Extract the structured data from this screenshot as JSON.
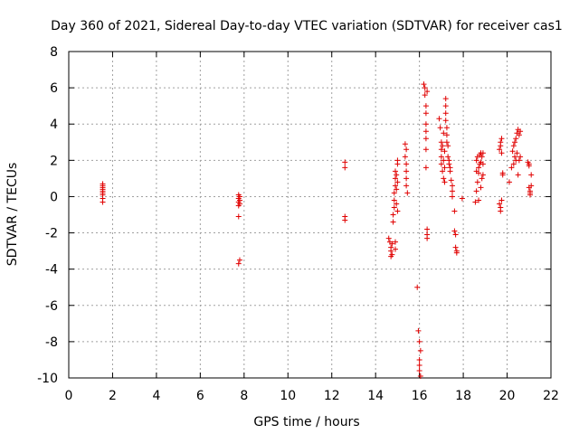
{
  "chart_data": {
    "type": "scatter",
    "title": "Day 360 of 2021, Sidereal Day-to-day VTEC variation (SDTVAR) for receiver cas1",
    "xlabel": "GPS time / hours",
    "ylabel": "SDTVAR / TECUs",
    "xlim": [
      0,
      22
    ],
    "ylim": [
      -10,
      8
    ],
    "xticks": [
      0,
      2,
      4,
      6,
      8,
      10,
      12,
      14,
      16,
      18,
      20,
      22
    ],
    "yticks": [
      -10,
      -8,
      -6,
      -4,
      -2,
      0,
      2,
      4,
      6,
      8
    ],
    "xtick_labels": [
      "0",
      "2",
      "4",
      "6",
      "8",
      "10",
      "12",
      "14",
      "16",
      "18",
      "20",
      "22"
    ],
    "ytick_labels": [
      "-10",
      "-8",
      "-6",
      "-4",
      "-2",
      "0",
      "2",
      "4",
      "6",
      "8"
    ],
    "grid": true,
    "marker": "+",
    "marker_color": "#e00000",
    "series": [
      {
        "name": "SDTVAR",
        "x": [
          1.55,
          1.55,
          1.55,
          1.55,
          1.55,
          1.55,
          1.55,
          1.55,
          1.55,
          7.75,
          7.75,
          7.75,
          7.75,
          7.8,
          7.8,
          7.8,
          7.75,
          7.8,
          7.75,
          12.6,
          12.6,
          12.6,
          12.6,
          14.6,
          14.65,
          14.7,
          14.7,
          14.7,
          14.75,
          14.75,
          14.8,
          14.8,
          14.85,
          14.85,
          14.85,
          14.9,
          14.9,
          14.9,
          14.95,
          14.95,
          14.95,
          15.0,
          15.0,
          15.0,
          15.0,
          14.9,
          14.9,
          15.35,
          15.35,
          15.4,
          15.4,
          15.4,
          15.4,
          15.45,
          15.4,
          15.9,
          15.95,
          16.0,
          16.0,
          16.0,
          16.0,
          16.05,
          16.05,
          16.2,
          16.25,
          16.25,
          16.3,
          16.3,
          16.3,
          16.3,
          16.3,
          16.3,
          16.35,
          16.35,
          16.35,
          16.3,
          16.35,
          16.9,
          16.95,
          17.0,
          17.0,
          17.0,
          17.0,
          17.05,
          17.05,
          17.1,
          17.1,
          17.1,
          17.15,
          17.15,
          17.15,
          17.2,
          17.2,
          17.2,
          17.2,
          17.25,
          17.25,
          17.25,
          17.3,
          17.3,
          17.35,
          17.35,
          17.4,
          17.4,
          17.45,
          17.5,
          17.5,
          17.5,
          17.6,
          17.6,
          17.65,
          17.65,
          17.7,
          17.7,
          17.95,
          18.55,
          18.6,
          18.6,
          18.65,
          18.65,
          18.7,
          18.7,
          18.75,
          18.75,
          18.8,
          18.8,
          18.8,
          18.85,
          18.85,
          18.9,
          18.9,
          18.9,
          18.7,
          18.6,
          19.65,
          19.7,
          19.7,
          19.75,
          19.75,
          19.8,
          19.8,
          19.65,
          19.7,
          19.75,
          19.7,
          20.1,
          20.2,
          20.25,
          20.3,
          20.3,
          20.35,
          20.35,
          20.4,
          20.4,
          20.45,
          20.45,
          20.5,
          20.5,
          20.55,
          20.55,
          20.6,
          20.6,
          20.95,
          21.0,
          21.0,
          21.05,
          21.05,
          21.1,
          21.1,
          21.0,
          21.05
        ],
        "y": [
          0.7,
          0.5,
          0.3,
          0.1,
          -0.1,
          -0.3,
          0.2,
          0.4,
          0.6,
          0.1,
          -0.1,
          -0.3,
          -0.5,
          -0.4,
          -0.2,
          0.0,
          -1.1,
          -3.5,
          -3.7,
          1.9,
          1.6,
          -1.1,
          -1.3,
          -2.3,
          -2.5,
          -2.8,
          -3.0,
          -3.3,
          -2.6,
          -3.2,
          -1.4,
          -1.0,
          -0.6,
          -0.2,
          0.2,
          0.6,
          1.0,
          1.4,
          -0.4,
          0.4,
          1.2,
          1.8,
          2.0,
          0.8,
          -0.8,
          -2.5,
          -2.9,
          2.9,
          2.2,
          1.8,
          1.4,
          1.0,
          0.6,
          0.2,
          2.6,
          -5.0,
          -7.4,
          -8.0,
          -9.0,
          -9.3,
          -9.6,
          -9.9,
          -8.5,
          6.2,
          6.0,
          5.6,
          5.0,
          4.6,
          4.0,
          3.6,
          3.2,
          2.6,
          -1.8,
          -2.1,
          -2.3,
          1.6,
          5.8,
          4.3,
          3.8,
          3.0,
          2.6,
          2.2,
          1.8,
          1.4,
          2.8,
          1.0,
          3.5,
          2.0,
          0.8,
          2.5,
          1.6,
          5.4,
          5.0,
          4.6,
          4.2,
          3.8,
          3.4,
          3.0,
          2.8,
          2.2,
          1.8,
          2.0,
          1.4,
          1.6,
          0.9,
          0.6,
          0.3,
          0.0,
          -0.8,
          -1.9,
          -2.1,
          -2.8,
          -3.0,
          -3.1,
          -0.1,
          -0.3,
          0.3,
          2.0,
          0.8,
          2.2,
          1.3,
          -0.2,
          1.8,
          2.3,
          0.5,
          1.9,
          2.4,
          1.0,
          2.2,
          1.8,
          1.2,
          2.4,
          1.6,
          1.4,
          2.6,
          2.8,
          3.0,
          3.2,
          2.4,
          1.2,
          1.3,
          -0.4,
          -0.6,
          -0.2,
          -0.8,
          0.8,
          1.6,
          2.5,
          2.8,
          1.8,
          3.0,
          2.2,
          3.2,
          2.0,
          3.5,
          2.4,
          3.7,
          1.2,
          3.4,
          2.0,
          3.6,
          2.2,
          1.9,
          1.7,
          0.5,
          0.3,
          0.1,
          0.6,
          1.2,
          1.8,
          0.2
        ]
      }
    ]
  }
}
